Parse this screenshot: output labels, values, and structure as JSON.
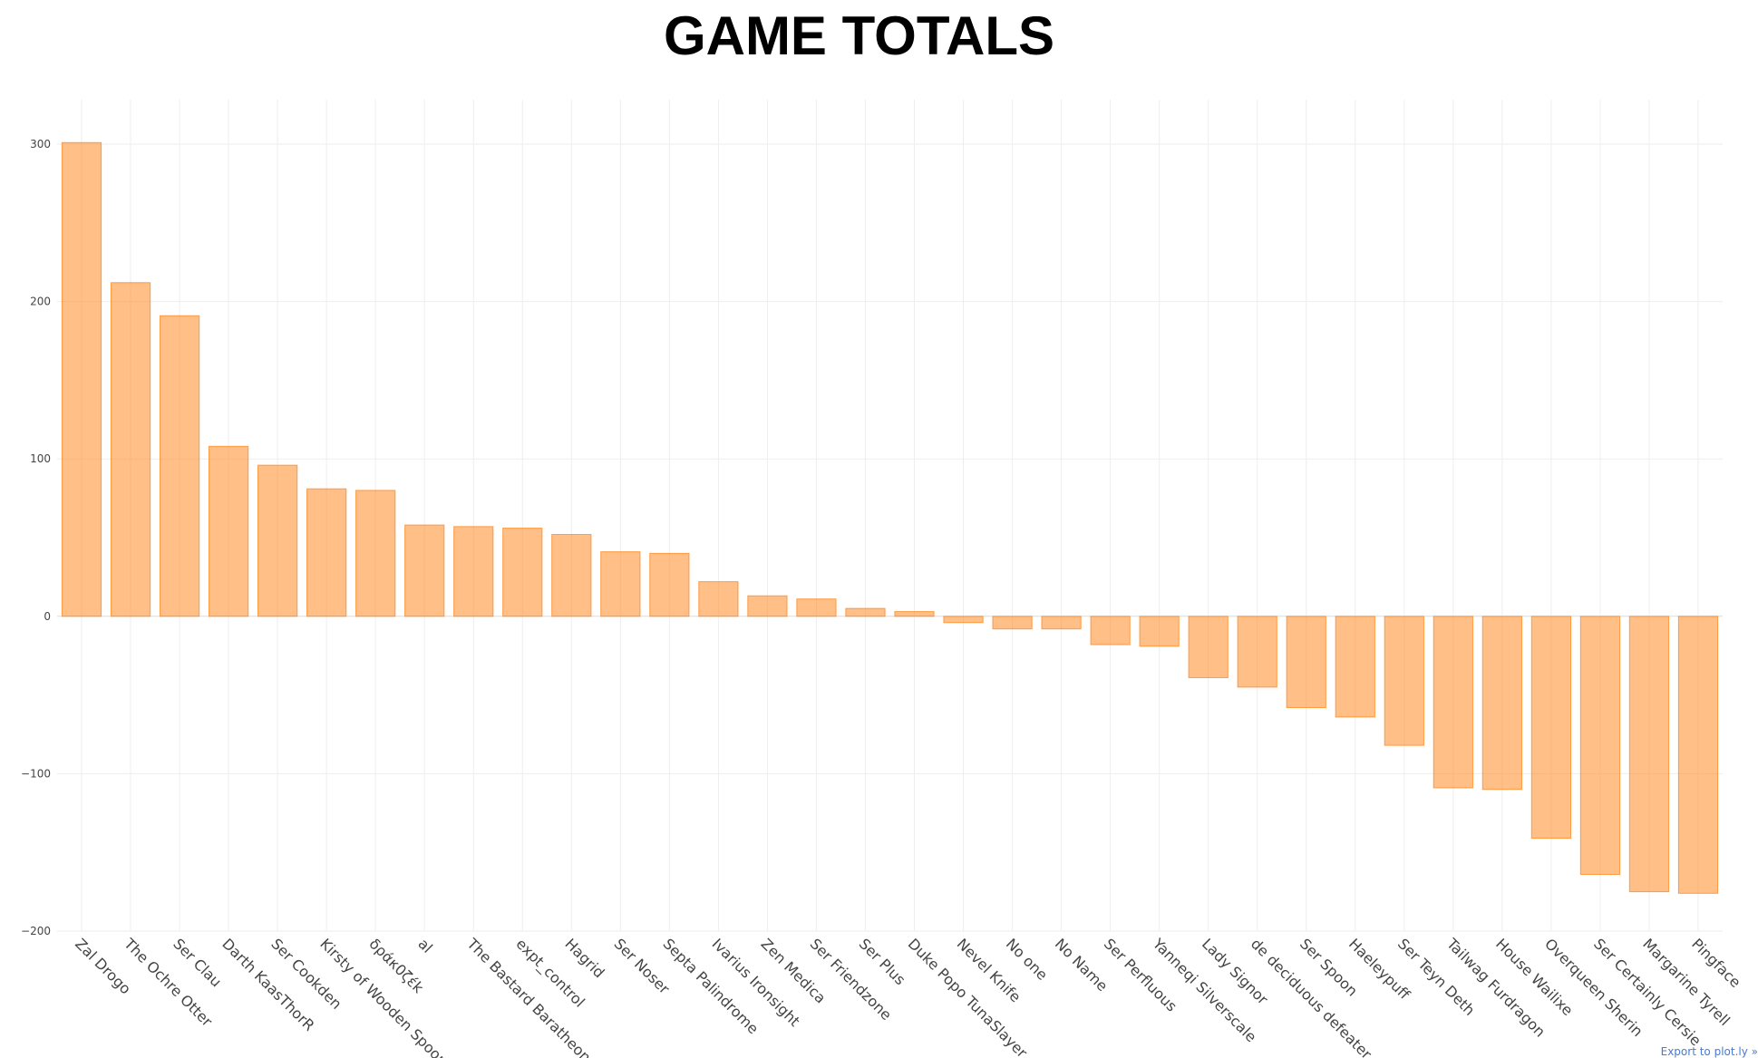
{
  "chart_data": {
    "type": "bar",
    "title": "GAME TOTALS",
    "xlabel": "",
    "ylabel": "",
    "ylim": [
      -200,
      300
    ],
    "yticks": [
      300,
      200,
      100,
      0,
      -100,
      -200
    ],
    "grid": true,
    "color": "#ff7f0e",
    "categories": [
      "Zal Drogo",
      "The Ochre Otter",
      "Ser Clau",
      "Darth KaasThorR",
      "Ser Cookden",
      "Kirsty of Wooden Spoon",
      "δράκ0ζέk",
      "al",
      "The Bastard Baratheon",
      "expt_control",
      "Hagrid",
      "Ser Noser",
      "Septa Palindrome",
      "Ivarius Ironsight",
      "Zen Medica",
      "Ser Friendzone",
      "Ser Plus",
      "Duke Popo TunaSlayer",
      "Nevel Knife",
      "No one",
      "No Name",
      "Ser Perfluous",
      "Yanneqi Silverscale",
      "Lady Signor",
      "de deciduous defeater",
      "Ser Spoon",
      "Haeleypuff",
      "Ser Teyn Deth",
      "Tailwag Furdragon",
      "House Wailixe",
      "Overqueen Sherin",
      "Ser Certainly Cersie",
      "Margarine Tyrell",
      "Pingface"
    ],
    "values": [
      301,
      212,
      191,
      108,
      96,
      81,
      80,
      58,
      57,
      56,
      52,
      41,
      40,
      22,
      13,
      11,
      5,
      3,
      -4,
      -8,
      -8,
      -18,
      -19,
      -39,
      -45,
      -58,
      -64,
      -82,
      -109,
      -110,
      -141,
      -164,
      -175,
      -176
    ]
  },
  "export_link": {
    "label": "Export to plot.ly »"
  }
}
